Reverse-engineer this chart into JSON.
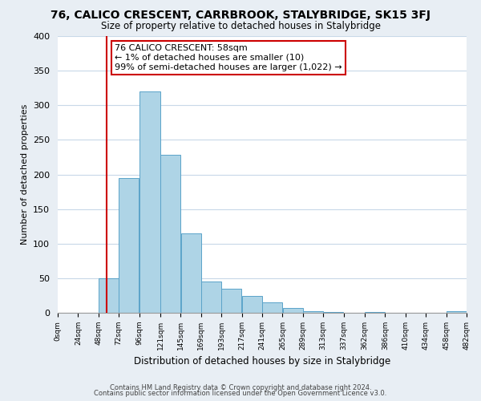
{
  "title": "76, CALICO CRESCENT, CARRBROOK, STALYBRIDGE, SK15 3FJ",
  "subtitle": "Size of property relative to detached houses in Stalybridge",
  "xlabel": "Distribution of detached houses by size in Stalybridge",
  "ylabel": "Number of detached properties",
  "bar_edges": [
    0,
    24,
    48,
    72,
    96,
    121,
    145,
    169,
    193,
    217,
    241,
    265,
    289,
    313,
    337,
    362,
    386,
    410,
    434,
    458,
    482
  ],
  "bar_heights": [
    0,
    0,
    50,
    195,
    320,
    228,
    115,
    45,
    35,
    24,
    15,
    7,
    2,
    1,
    0,
    1,
    0,
    0,
    0,
    2
  ],
  "bar_color": "#aed4e6",
  "bar_edge_color": "#5ba3c9",
  "highlight_x": 58,
  "highlight_line_color": "#cc0000",
  "annotation_title": "76 CALICO CRESCENT: 58sqm",
  "annotation_line1": "← 1% of detached houses are smaller (10)",
  "annotation_line2": "99% of semi-detached houses are larger (1,022) →",
  "annotation_box_color": "#ffffff",
  "annotation_box_edge": "#cc0000",
  "xlim": [
    0,
    482
  ],
  "ylim": [
    0,
    400
  ],
  "yticks": [
    0,
    50,
    100,
    150,
    200,
    250,
    300,
    350,
    400
  ],
  "xtick_labels": [
    "0sqm",
    "24sqm",
    "48sqm",
    "72sqm",
    "96sqm",
    "121sqm",
    "145sqm",
    "169sqm",
    "193sqm",
    "217sqm",
    "241sqm",
    "265sqm",
    "289sqm",
    "313sqm",
    "337sqm",
    "362sqm",
    "386sqm",
    "410sqm",
    "434sqm",
    "458sqm",
    "482sqm"
  ],
  "xtick_positions": [
    0,
    24,
    48,
    72,
    96,
    121,
    145,
    169,
    193,
    217,
    241,
    265,
    289,
    313,
    337,
    362,
    386,
    410,
    434,
    458,
    482
  ],
  "footer1": "Contains HM Land Registry data © Crown copyright and database right 2024.",
  "footer2": "Contains public sector information licensed under the Open Government Licence v3.0.",
  "bg_color": "#e8eef4",
  "plot_bg_color": "#ffffff",
  "title_fontsize": 10,
  "subtitle_fontsize": 8.5,
  "ylabel_fontsize": 8,
  "xlabel_fontsize": 8.5,
  "ytick_fontsize": 8,
  "xtick_fontsize": 6.5,
  "footer_fontsize": 6,
  "ann_fontsize": 8
}
